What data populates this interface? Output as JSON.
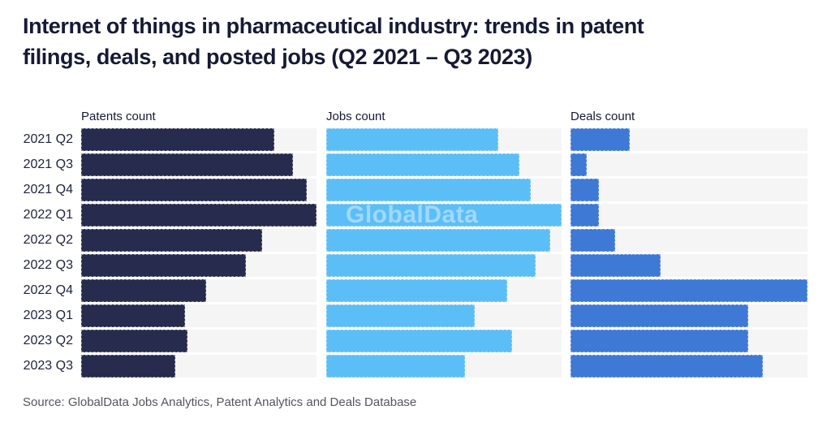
{
  "header": {
    "title_lines": [
      "Internet of things in pharmaceutical industry: trends in patent",
      "filings, deals, and posted jobs (Q2 2021 – Q3 2023)"
    ]
  },
  "watermark": "GlobalData",
  "footer": {
    "source": "Source: GlobalData Jobs Analytics, Patent Analytics and Deals Database"
  },
  "colors": {
    "patents_bar": "#272B4D",
    "jobs_bar": "#5CBEF7",
    "deals_bar": "#3F79D6",
    "bar_track": "#F5F5F5",
    "title_text": "#161A34",
    "label_text": "#20243E",
    "source_text": "#54545E",
    "watermark_text": "rgba(255,255,255,0.42)"
  },
  "chart_data": {
    "type": "bar",
    "orientation": "horizontal",
    "title": "Internet of things in pharmaceutical industry: trends in patent filings, deals, and posted jobs (Q2 2021 – Q3 2023)",
    "categories": [
      "2021 Q2",
      "2021 Q3",
      "2021 Q4",
      "2022 Q1",
      "2022 Q2",
      "2022 Q3",
      "2022 Q4",
      "2023 Q1",
      "2023 Q2",
      "2023 Q3"
    ],
    "series": [
      {
        "name": "Patents count",
        "color": "#272B4D",
        "values_pct_of_panel_max": [
          82,
          90,
          96,
          100,
          77,
          70,
          53,
          44,
          45,
          40
        ]
      },
      {
        "name": "Jobs count",
        "color": "#5CBEF7",
        "values_pct_of_panel_max": [
          73,
          82,
          87,
          100,
          95,
          89,
          77,
          63,
          79,
          59
        ]
      },
      {
        "name": "Deals count",
        "color": "#3F79D6",
        "values_pct_of_panel_max": [
          25,
          7,
          12,
          12,
          19,
          38,
          100,
          75,
          75,
          81
        ]
      }
    ],
    "value_axis": "hidden",
    "legend": "none",
    "grid": "off"
  }
}
